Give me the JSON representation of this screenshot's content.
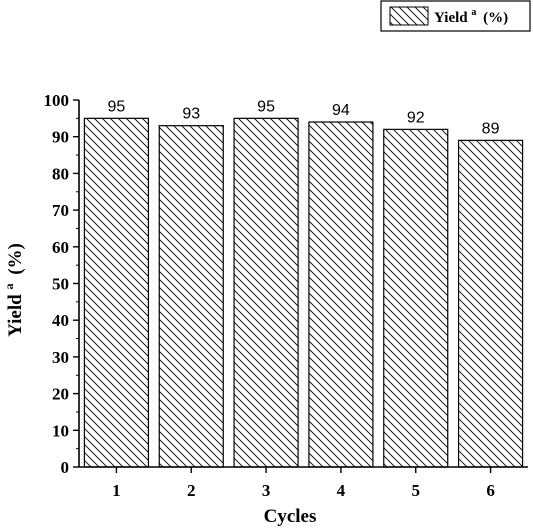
{
  "chart_data": {
    "type": "bar",
    "categories": [
      "1",
      "2",
      "3",
      "4",
      "5",
      "6"
    ],
    "series": [
      {
        "name": "Yield a (%)",
        "values": [
          95,
          93,
          95,
          94,
          92,
          89
        ]
      }
    ],
    "data_labels": [
      "95",
      "93",
      "95",
      "94",
      "92",
      "89"
    ],
    "xlabel": "Cycles",
    "ylabel": {
      "main": "Yield",
      "sup": "a",
      "unit": "(%)"
    },
    "ylim": [
      0,
      100
    ],
    "yticks": [
      "0",
      "10",
      "20",
      "30",
      "40",
      "50",
      "60",
      "70",
      "80",
      "90",
      "100"
    ],
    "legend": {
      "main": "Yield",
      "sup": "a",
      "unit": "(%)"
    },
    "legend_position": "top-right",
    "bar_fill": "diagonal-hatch",
    "grid": false
  }
}
